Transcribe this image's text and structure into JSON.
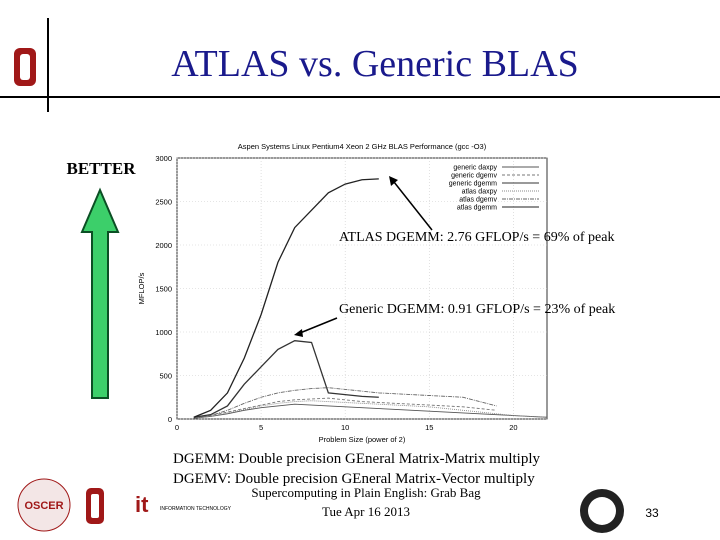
{
  "slide": {
    "title": "ATLAS vs. Generic BLAS",
    "better": "BETTER",
    "annotations": [
      "ATLAS DGEMM:  2.76 GFLOP/s = 69% of peak",
      "Generic DGEMM:  0.91 GFLOP/s = 23% of peak"
    ],
    "definitions": [
      "DGEMM: Double precision GEneral Matrix-Matrix multiply",
      "DGEMV:  Double precision GEneral Matrix-Vector multiply"
    ],
    "footer": {
      "course": "Supercomputing in Plain English: Grab Bag",
      "date": "Tue Apr 16 2013",
      "page": "33"
    },
    "logos": {
      "oscer": "OSCER",
      "it": "it",
      "it_sub": "INFORMATION TECHNOLOGY"
    }
  },
  "chart_data": {
    "type": "line",
    "title": "Aspen Systems Linux Pentium4 Xeon 2 GHz BLAS Performance (gcc -O3)",
    "x_label": "Problem Size (power of 2)",
    "y_label": "MFLOP/s",
    "x": [
      0,
      1,
      2,
      3,
      4,
      5,
      6,
      7,
      8,
      9,
      10,
      11,
      12,
      13,
      14,
      15,
      16,
      17,
      18,
      19,
      20,
      21,
      22
    ],
    "series": [
      {
        "name": "generic daxpy",
        "color": "#555555",
        "values": [
          null,
          10,
          30,
          60,
          100,
          130,
          150,
          170,
          160,
          150,
          140,
          130,
          120,
          110,
          100,
          90,
          80,
          70,
          60,
          50,
          40,
          30,
          20
        ]
      },
      {
        "name": "generic dgemv",
        "color": "#777777",
        "values": [
          null,
          10,
          40,
          80,
          120,
          160,
          200,
          220,
          230,
          240,
          220,
          200,
          190,
          180,
          170,
          160,
          150,
          140,
          120,
          100,
          null,
          null,
          null
        ]
      },
      {
        "name": "generic dgemm",
        "color": "#333333",
        "values": [
          null,
          20,
          50,
          150,
          400,
          600,
          800,
          900,
          880,
          300,
          280,
          260,
          250,
          null,
          null,
          null,
          null,
          null,
          null,
          null,
          null,
          null,
          null
        ]
      },
      {
        "name": "atlas daxpy",
        "color": "#888888",
        "values": [
          null,
          10,
          30,
          70,
          110,
          150,
          180,
          200,
          210,
          200,
          190,
          180,
          170,
          160,
          150,
          140,
          120,
          100,
          80,
          60,
          40,
          30,
          20
        ]
      },
      {
        "name": "atlas dgemv",
        "color": "#666666",
        "values": [
          null,
          10,
          40,
          100,
          180,
          250,
          300,
          330,
          350,
          360,
          340,
          320,
          300,
          290,
          280,
          270,
          260,
          250,
          200,
          150,
          null,
          null,
          null
        ]
      },
      {
        "name": "atlas dgemm",
        "color": "#222222",
        "values": [
          null,
          20,
          100,
          300,
          700,
          1200,
          1800,
          2200,
          2400,
          2600,
          2700,
          2750,
          2760,
          null,
          null,
          null,
          null,
          null,
          null,
          null,
          null,
          null,
          null
        ]
      }
    ],
    "xlim": [
      0,
      22
    ],
    "ylim": [
      0,
      3000
    ],
    "xticks": [
      0,
      5,
      10,
      15,
      20
    ],
    "yticks": [
      0,
      500,
      1000,
      1500,
      2000,
      2500,
      3000
    ],
    "grid": true,
    "legend": "top-right"
  }
}
